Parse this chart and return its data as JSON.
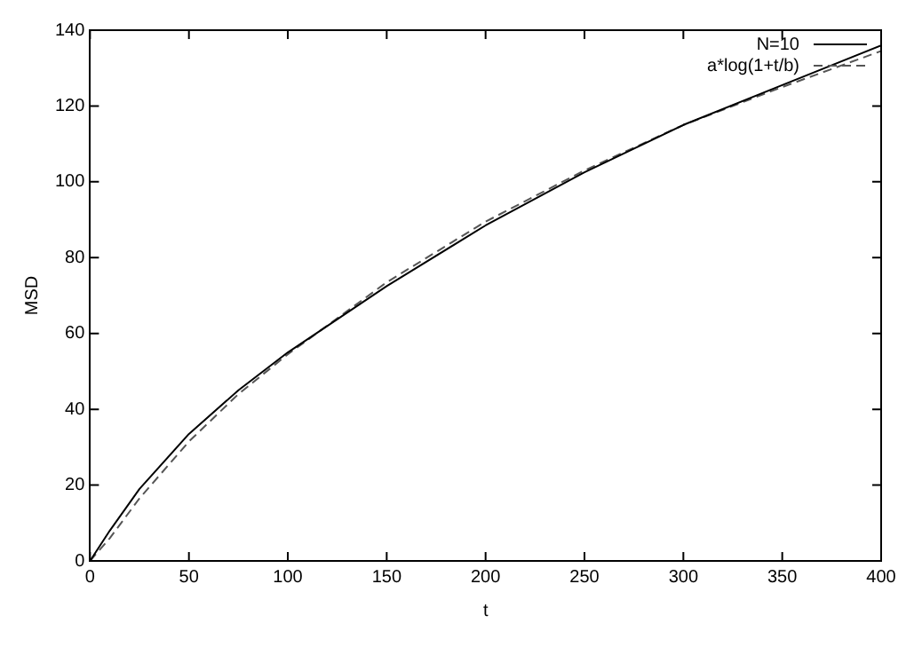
{
  "chart_data": {
    "type": "line",
    "xlabel": "t",
    "ylabel": "MSD",
    "xlim": [
      0,
      400
    ],
    "ylim": [
      0,
      140
    ],
    "xticks": [
      0,
      50,
      100,
      150,
      200,
      250,
      300,
      350,
      400
    ],
    "yticks": [
      0,
      20,
      40,
      60,
      80,
      100,
      120,
      140
    ],
    "grid": false,
    "legend": "top right",
    "marker": "none",
    "series": [
      {
        "name": "N=10",
        "color": "#000000",
        "line_style": "solid",
        "x": [
          0,
          10,
          25,
          50,
          75,
          100,
          150,
          200,
          250,
          300,
          350,
          400
        ],
        "values": [
          0,
          8,
          19,
          33.5,
          45,
          55,
          72.5,
          88.5,
          102.5,
          115,
          125.5,
          136
        ]
      },
      {
        "name": "a*log(1+t/b)",
        "color": "#555555",
        "line_style": "dashed",
        "x": [
          0,
          10,
          25,
          50,
          75,
          100,
          150,
          200,
          250,
          300,
          350,
          400
        ],
        "values": [
          0,
          6,
          16.5,
          31.5,
          44,
          54.5,
          73.5,
          89.5,
          103,
          115,
          125,
          134.5
        ]
      }
    ]
  }
}
